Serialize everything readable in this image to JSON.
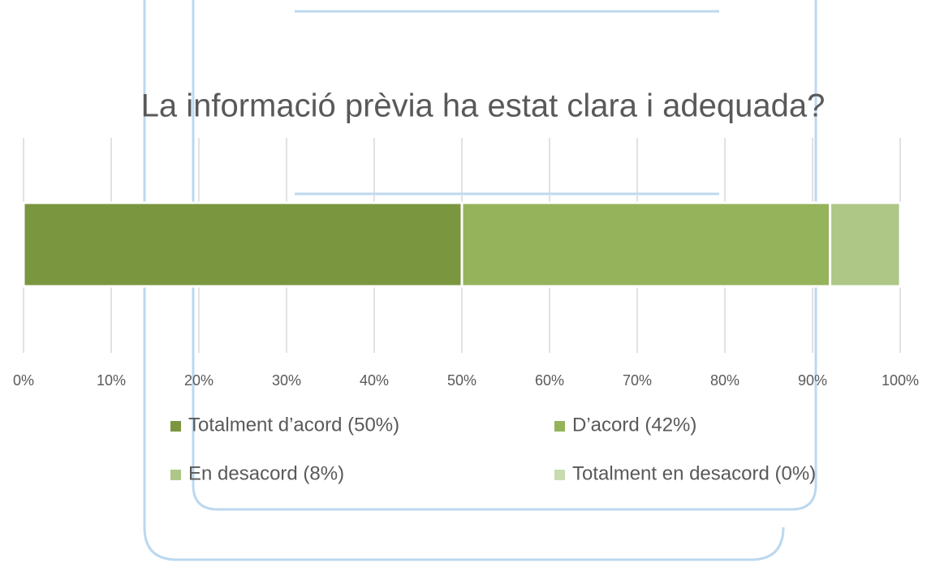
{
  "chart_data": {
    "type": "stacked_barh",
    "title": "La informació prèvia ha estat clara i adequada?",
    "series": [
      {
        "name": "Totalment d’acord (50%)",
        "color": "#7a963f",
        "values": [
          50
        ]
      },
      {
        "name": "D’acord (42%)",
        "color": "#95b35a",
        "values": [
          42
        ]
      },
      {
        "name": "En desacord (8%)",
        "color": "#aec686",
        "values": [
          8
        ]
      },
      {
        "name": "Totalment en desacord (0%)",
        "color": "#c9dbb0",
        "values": [
          0
        ]
      }
    ],
    "xlim": [
      0,
      100
    ],
    "xticks": [
      {
        "value": 0,
        "label": "0%"
      },
      {
        "value": 10,
        "label": "10%"
      },
      {
        "value": 20,
        "label": "20%"
      },
      {
        "value": 30,
        "label": "30%"
      },
      {
        "value": 40,
        "label": "40%"
      },
      {
        "value": 50,
        "label": "50%"
      },
      {
        "value": 60,
        "label": "60%"
      },
      {
        "value": 70,
        "label": "70%"
      },
      {
        "value": 80,
        "label": "80%"
      },
      {
        "value": 90,
        "label": "90%"
      },
      {
        "value": 100,
        "label": "100%"
      }
    ],
    "grid": true,
    "legend": "bottom"
  }
}
